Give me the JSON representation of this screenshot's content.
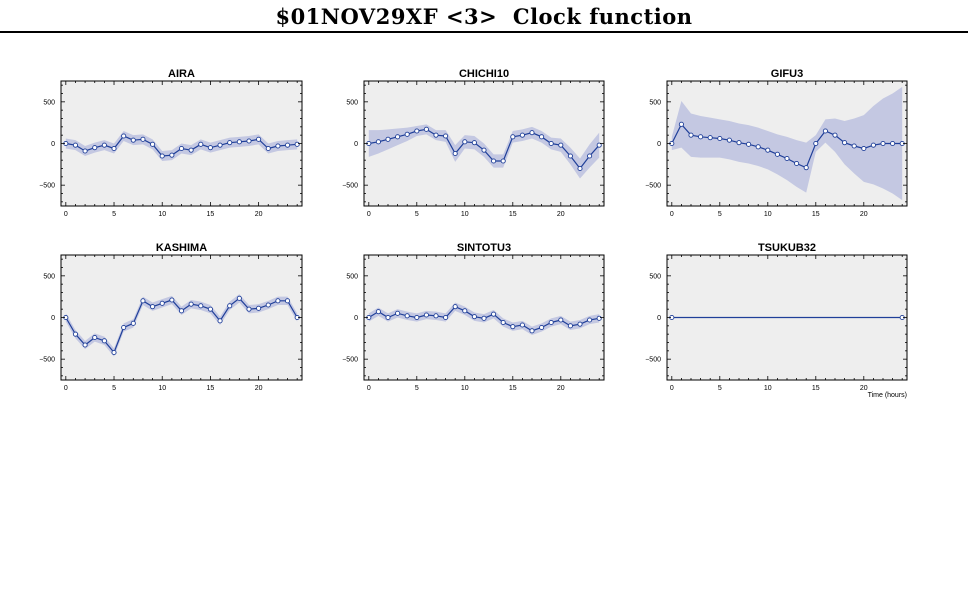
{
  "page": {
    "title": "$01NOV29XF <3>  Clock function"
  },
  "chart_data": [
    {
      "type": "line",
      "title": "AIRA",
      "x": [
        0,
        1,
        2,
        3,
        4,
        5,
        6,
        7,
        8,
        9,
        10,
        11,
        12,
        13,
        14,
        15,
        16,
        17,
        18,
        19,
        20,
        21,
        22,
        23,
        24
      ],
      "y": [
        0,
        -20,
        -90,
        -50,
        -20,
        -60,
        90,
        40,
        50,
        -10,
        -150,
        -140,
        -60,
        -80,
        -10,
        -50,
        -20,
        10,
        20,
        30,
        50,
        -60,
        -30,
        -20,
        -10
      ],
      "band": [
        60,
        60,
        60,
        60,
        60,
        60,
        60,
        60,
        60,
        60,
        60,
        60,
        60,
        60,
        60,
        60,
        60,
        60,
        60,
        60,
        60,
        60,
        60,
        60,
        60
      ],
      "xticks": [
        0,
        5,
        10,
        15,
        20
      ],
      "yticks": [
        -500,
        0,
        500
      ],
      "xlim": [
        -0.5,
        24.5
      ],
      "ylim": [
        -750,
        750
      ]
    },
    {
      "type": "line",
      "title": "CHICHI10",
      "x": [
        0,
        1,
        2,
        3,
        4,
        5,
        6,
        7,
        8,
        9,
        10,
        11,
        12,
        13,
        14,
        15,
        16,
        17,
        18,
        19,
        20,
        21,
        22,
        23,
        24
      ],
      "y": [
        0,
        20,
        50,
        80,
        110,
        150,
        170,
        100,
        90,
        -120,
        20,
        10,
        -80,
        -210,
        -210,
        80,
        100,
        130,
        80,
        0,
        -20,
        -150,
        -300,
        -150,
        -20
      ],
      "band": [
        160,
        140,
        120,
        100,
        80,
        60,
        60,
        60,
        70,
        100,
        80,
        80,
        80,
        80,
        80,
        70,
        70,
        70,
        70,
        70,
        80,
        100,
        120,
        140,
        150
      ],
      "xticks": [
        0,
        5,
        10,
        15,
        20
      ],
      "yticks": [
        -500,
        0,
        500
      ],
      "xlim": [
        -0.5,
        24.5
      ],
      "ylim": [
        -750,
        750
      ]
    },
    {
      "type": "line",
      "title": "GIFU3",
      "x": [
        0,
        1,
        2,
        3,
        4,
        5,
        6,
        7,
        8,
        9,
        10,
        11,
        12,
        13,
        14,
        15,
        16,
        17,
        18,
        19,
        20,
        21,
        22,
        23,
        24
      ],
      "y": [
        0,
        230,
        100,
        80,
        70,
        60,
        40,
        10,
        -10,
        -40,
        -80,
        -130,
        -180,
        -240,
        -290,
        0,
        150,
        100,
        10,
        -30,
        -60,
        -20,
        0,
        0,
        0
      ],
      "band": [
        80,
        280,
        260,
        250,
        240,
        230,
        230,
        230,
        230,
        230,
        230,
        240,
        260,
        280,
        300,
        100,
        140,
        200,
        260,
        330,
        400,
        470,
        540,
        600,
        680
      ],
      "xticks": [
        0,
        5,
        10,
        15,
        20
      ],
      "yticks": [
        -500,
        0,
        500
      ],
      "xlim": [
        -0.5,
        24.5
      ],
      "ylim": [
        -750,
        750
      ]
    },
    {
      "type": "line",
      "title": "KASHIMA",
      "x": [
        0,
        1,
        2,
        3,
        4,
        5,
        6,
        7,
        8,
        9,
        10,
        11,
        12,
        13,
        14,
        15,
        16,
        17,
        18,
        19,
        20,
        21,
        22,
        23,
        24
      ],
      "y": [
        0,
        -200,
        -330,
        -240,
        -280,
        -420,
        -120,
        -70,
        200,
        130,
        170,
        210,
        80,
        160,
        140,
        100,
        -40,
        140,
        230,
        100,
        110,
        150,
        200,
        200,
        0
      ],
      "band": [
        50,
        50,
        50,
        50,
        50,
        50,
        50,
        50,
        50,
        50,
        50,
        50,
        50,
        50,
        50,
        50,
        50,
        50,
        50,
        50,
        50,
        50,
        50,
        50,
        50
      ],
      "xticks": [
        0,
        5,
        10,
        15,
        20
      ],
      "yticks": [
        -500,
        0,
        500
      ],
      "xlim": [
        -0.5,
        24.5
      ],
      "ylim": [
        -750,
        750
      ]
    },
    {
      "type": "line",
      "title": "SINTOTU3",
      "x": [
        0,
        1,
        2,
        3,
        4,
        5,
        6,
        7,
        8,
        9,
        10,
        11,
        12,
        13,
        14,
        15,
        16,
        17,
        18,
        19,
        20,
        21,
        22,
        23,
        24
      ],
      "y": [
        0,
        70,
        0,
        50,
        20,
        0,
        30,
        20,
        0,
        130,
        80,
        10,
        -10,
        40,
        -60,
        -110,
        -90,
        -160,
        -120,
        -60,
        -30,
        -100,
        -80,
        -30,
        -10
      ],
      "band": [
        50,
        50,
        50,
        50,
        50,
        50,
        50,
        50,
        50,
        50,
        50,
        50,
        50,
        50,
        50,
        50,
        50,
        50,
        50,
        50,
        50,
        50,
        50,
        50,
        50
      ],
      "xticks": [
        0,
        5,
        10,
        15,
        20
      ],
      "yticks": [
        -500,
        0,
        500
      ],
      "xlim": [
        -0.5,
        24.5
      ],
      "ylim": [
        -750,
        750
      ]
    },
    {
      "type": "line",
      "title": "TSUKUB32",
      "x": [
        0,
        24
      ],
      "y": [
        0,
        0
      ],
      "band": [
        0,
        0
      ],
      "xticks": [
        0,
        5,
        10,
        15,
        20
      ],
      "yticks": [
        -500,
        0,
        500
      ],
      "xlim": [
        -0.5,
        24.5
      ],
      "ylim": [
        -750,
        750
      ],
      "xlabel": "Time (hours)"
    }
  ],
  "colors": {
    "plot_bg": "#eeeeee",
    "band": "#c4c8e2",
    "line": "#1f3f99",
    "marker_fill": "#ffffff",
    "axis": "#000000"
  }
}
